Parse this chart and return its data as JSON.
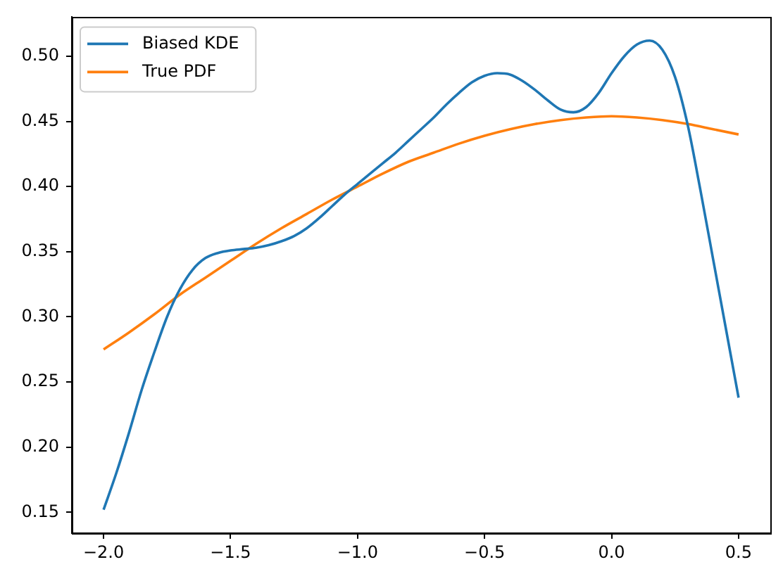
{
  "chart_data": {
    "type": "line",
    "series": [
      {
        "name": "Biased KDE",
        "color": "#1f77b4",
        "x": [
          -2.0,
          -1.95,
          -1.9,
          -1.85,
          -1.8,
          -1.75,
          -1.7,
          -1.65,
          -1.6,
          -1.55,
          -1.5,
          -1.45,
          -1.4,
          -1.35,
          -1.3,
          -1.25,
          -1.2,
          -1.15,
          -1.1,
          -1.05,
          -1.0,
          -0.95,
          -0.9,
          -0.85,
          -0.8,
          -0.75,
          -0.7,
          -0.65,
          -0.6,
          -0.55,
          -0.5,
          -0.45,
          -0.4,
          -0.35,
          -0.3,
          -0.25,
          -0.2,
          -0.15,
          -0.1,
          -0.05,
          0.0,
          0.05,
          0.1,
          0.15,
          0.2,
          0.25,
          0.3,
          0.35,
          0.4,
          0.45,
          0.5
        ],
        "values": [
          0.152,
          0.18,
          0.211,
          0.244,
          0.273,
          0.3,
          0.321,
          0.336,
          0.345,
          0.349,
          0.351,
          0.352,
          0.353,
          0.355,
          0.358,
          0.362,
          0.368,
          0.376,
          0.385,
          0.394,
          0.402,
          0.41,
          0.418,
          0.426,
          0.435,
          0.444,
          0.453,
          0.463,
          0.472,
          0.48,
          0.485,
          0.487,
          0.486,
          0.481,
          0.474,
          0.466,
          0.459,
          0.457,
          0.461,
          0.472,
          0.487,
          0.5,
          0.509,
          0.512,
          0.505,
          0.484,
          0.447,
          0.397,
          0.344,
          0.291,
          0.238
        ]
      },
      {
        "name": "True PDF",
        "color": "#ff7f0e",
        "x": [
          -2.0,
          -1.9,
          -1.8,
          -1.7,
          -1.6,
          -1.5,
          -1.4,
          -1.3,
          -1.2,
          -1.1,
          -1.0,
          -0.9,
          -0.8,
          -0.7,
          -0.6,
          -0.5,
          -0.4,
          -0.3,
          -0.2,
          -0.1,
          0.0,
          0.1,
          0.2,
          0.3,
          0.4,
          0.5
        ],
        "values": [
          0.275,
          0.288,
          0.302,
          0.317,
          0.33,
          0.343,
          0.356,
          0.368,
          0.379,
          0.39,
          0.4,
          0.41,
          0.419,
          0.426,
          0.433,
          0.439,
          0.444,
          0.448,
          0.451,
          0.453,
          0.454,
          0.453,
          0.451,
          0.448,
          0.444,
          0.44
        ]
      }
    ],
    "xlim": [
      -2.125,
      0.625
    ],
    "xticks": [
      {
        "value": -2.0,
        "label": "−2.0"
      },
      {
        "value": -1.5,
        "label": "−1.5"
      },
      {
        "value": -1.0,
        "label": "−1.0"
      },
      {
        "value": -0.5,
        "label": "−0.5"
      },
      {
        "value": 0.0,
        "label": "0.0"
      },
      {
        "value": 0.5,
        "label": "0.5"
      }
    ],
    "ylim": [
      0.134,
      0.53
    ],
    "yticks": [
      {
        "value": 0.15,
        "label": "0.15"
      },
      {
        "value": 0.2,
        "label": "0.20"
      },
      {
        "value": 0.25,
        "label": "0.25"
      },
      {
        "value": 0.3,
        "label": "0.30"
      },
      {
        "value": 0.35,
        "label": "0.35"
      },
      {
        "value": 0.4,
        "label": "0.40"
      },
      {
        "value": 0.45,
        "label": "0.45"
      },
      {
        "value": 0.5,
        "label": "0.50"
      }
    ],
    "grid": false,
    "legend": "top left",
    "marker": "none",
    "line_style": "solid"
  }
}
